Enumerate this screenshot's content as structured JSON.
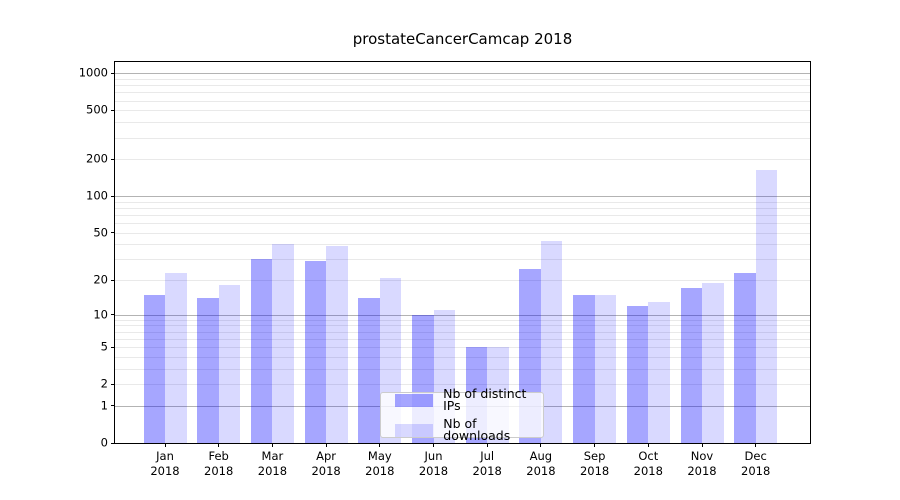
{
  "chart_data": {
    "type": "bar",
    "title": "prostateCancerCamcap 2018",
    "x_year": "2018",
    "categories": [
      "Jan",
      "Feb",
      "Mar",
      "Apr",
      "May",
      "Jun",
      "Jul",
      "Aug",
      "Sep",
      "Oct",
      "Nov",
      "Dec"
    ],
    "series": [
      {
        "name": "Nb of distinct IPs",
        "color": "#0000FF59",
        "values": [
          15,
          14,
          30,
          29,
          14,
          10,
          5,
          25,
          15,
          12,
          17,
          23
        ]
      },
      {
        "name": "Nb of downloads",
        "color": "#0000FF26",
        "values": [
          23,
          18,
          40,
          39,
          21,
          11,
          5,
          43,
          15,
          13,
          19,
          163
        ]
      }
    ],
    "yscale": "log1p",
    "yticks": [
      0,
      1,
      2,
      5,
      10,
      20,
      50,
      100,
      200,
      500,
      1000
    ],
    "ylim": [
      0,
      1240
    ],
    "xlabel": "",
    "ylabel": "",
    "grid": true,
    "legend_position": "lower center",
    "colors": {
      "grid_major": "#b3b3b3",
      "grid_minor": "#e9e9e9",
      "spine": "#000000",
      "text": "#000000",
      "background": "#ffffff"
    }
  }
}
